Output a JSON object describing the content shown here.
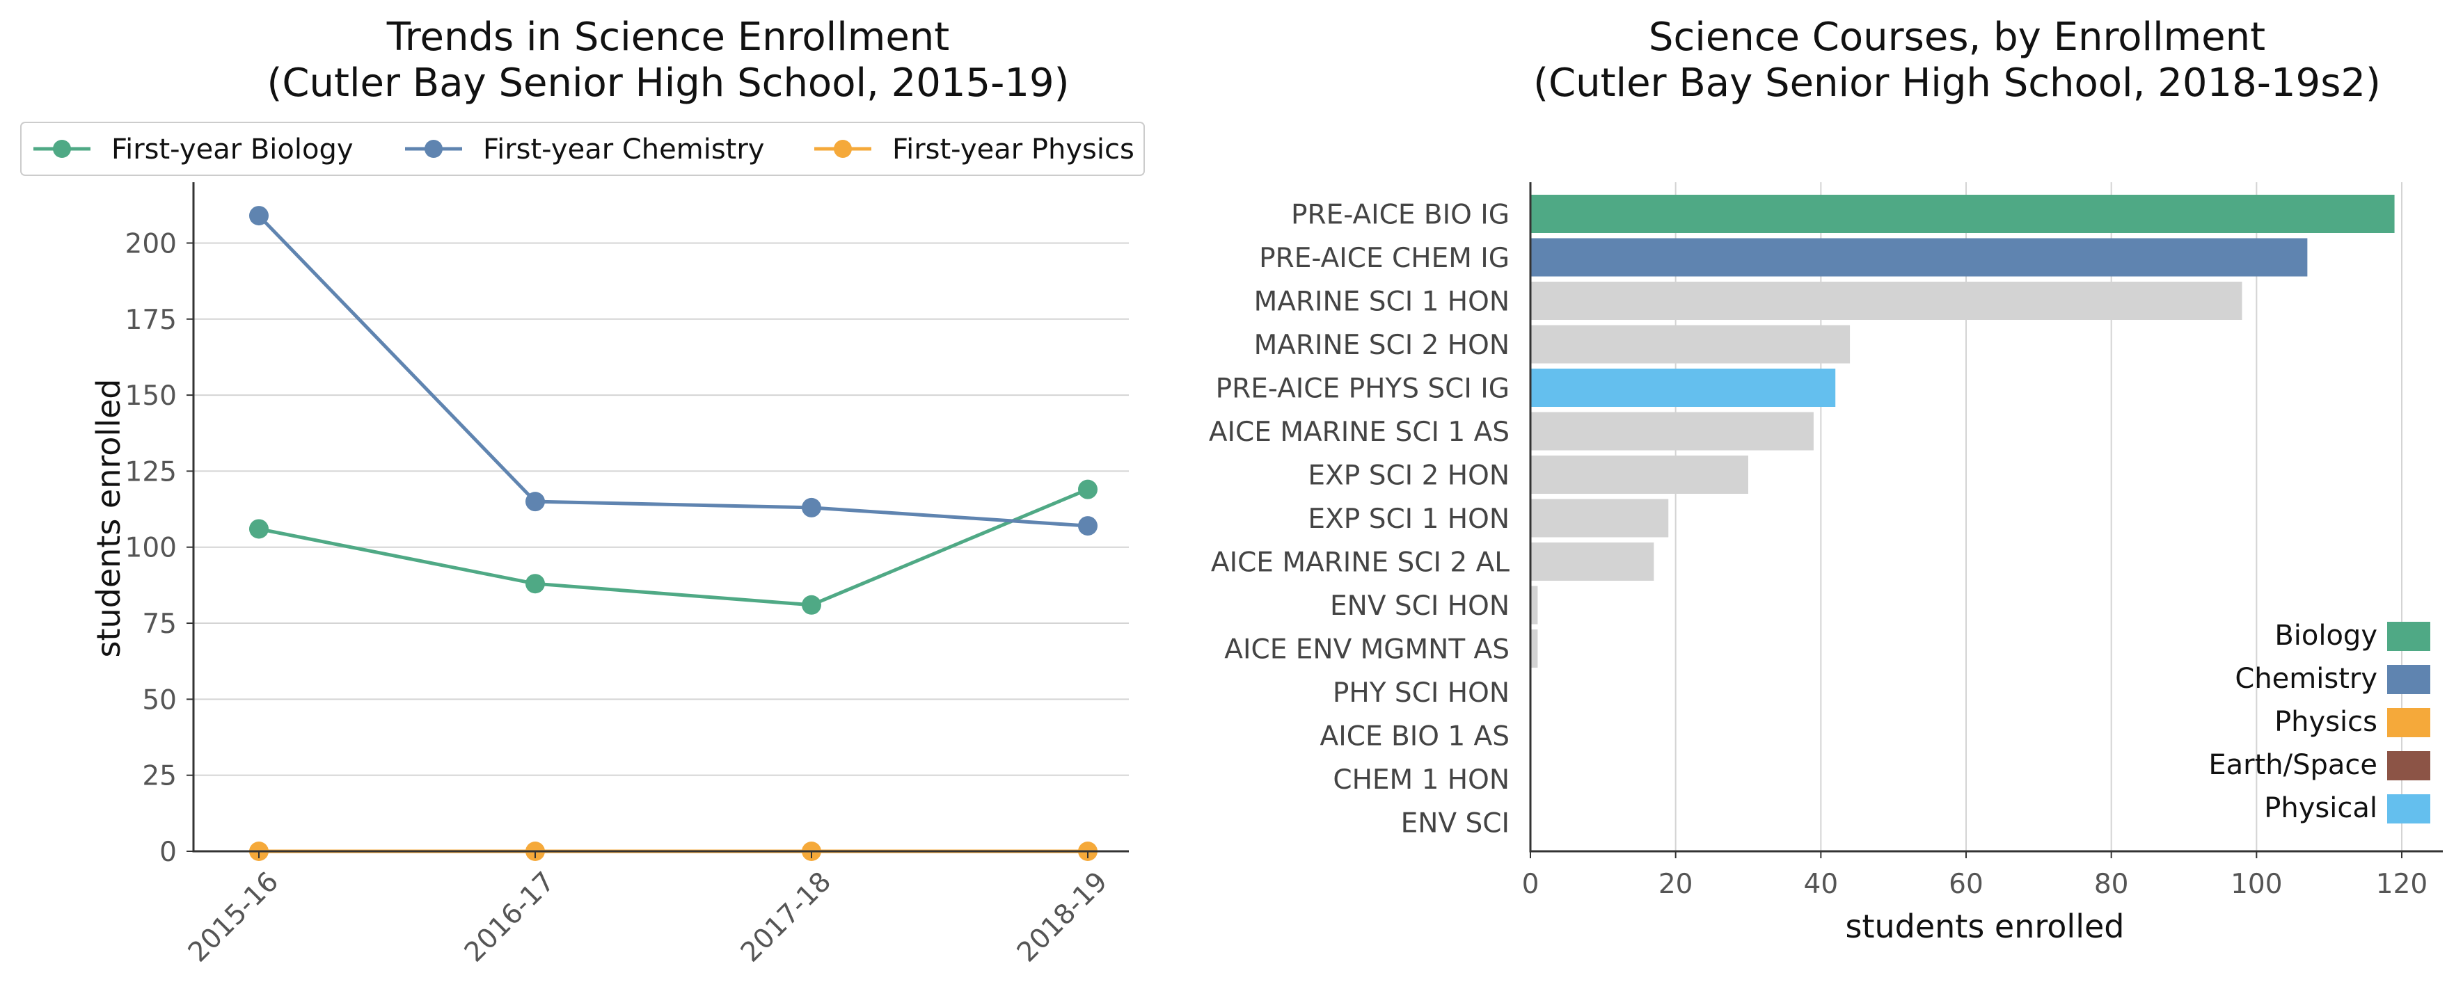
{
  "chart_data": [
    {
      "type": "line",
      "title_line1": "Trends in Science Enrollment",
      "title_line2": "(Cutler Bay Senior High School, 2015-19)",
      "xlabel": "",
      "ylabel": "students enrolled",
      "categories": [
        "2015-16",
        "2016-17",
        "2017-18",
        "2018-19"
      ],
      "ylim": [
        0,
        220
      ],
      "yticks": [
        0,
        25,
        50,
        75,
        100,
        125,
        150,
        175,
        200
      ],
      "grid": "horizontal",
      "legend_position": "top",
      "series": [
        {
          "name": "First-year Biology",
          "color": "#4fa985",
          "values": [
            106,
            88,
            81,
            119
          ]
        },
        {
          "name": "First-year Chemistry",
          "color": "#5f84b0",
          "values": [
            209,
            115,
            113,
            107
          ]
        },
        {
          "name": "First-year Physics",
          "color": "#f5a93a",
          "values": [
            0,
            0,
            0,
            0
          ]
        }
      ]
    },
    {
      "type": "bar",
      "orientation": "horizontal",
      "title_line1": "Science Courses, by Enrollment",
      "title_line2": "(Cutler Bay Senior High School, 2018-19s2)",
      "xlabel": "students enrolled",
      "ylabel": "",
      "xlim": [
        0,
        125
      ],
      "xticks": [
        0,
        20,
        40,
        60,
        80,
        100,
        120
      ],
      "grid": "vertical",
      "legend_position": "bottom-right",
      "categories": [
        "PRE-AICE BIO IG",
        "PRE-AICE CHEM IG",
        "MARINE SCI 1 HON",
        "MARINE SCI 2 HON",
        "PRE-AICE PHYS SCI IG",
        "AICE MARINE SCI 1 AS",
        "EXP SCI 2 HON",
        "EXP SCI 1 HON",
        "AICE MARINE SCI 2 AL",
        "ENV SCI HON",
        "AICE ENV MGMNT AS",
        "PHY SCI HON",
        "AICE BIO 1 AS",
        "CHEM 1 HON",
        "ENV SCI"
      ],
      "values": [
        119,
        107,
        98,
        44,
        42,
        39,
        30,
        19,
        17,
        1,
        1,
        0,
        0,
        0,
        0
      ],
      "bar_colors": [
        "#4fa985",
        "#5f84b0",
        "#d3d3d3",
        "#d3d3d3",
        "#64bfee",
        "#d3d3d3",
        "#d3d3d3",
        "#d3d3d3",
        "#d3d3d3",
        "#d3d3d3",
        "#d3d3d3",
        "#d3d3d3",
        "#d3d3d3",
        "#d3d3d3",
        "#d3d3d3"
      ],
      "legend": [
        {
          "name": "Biology",
          "color": "#4fa985"
        },
        {
          "name": "Chemistry",
          "color": "#5f84b0"
        },
        {
          "name": "Physics",
          "color": "#f5a93a"
        },
        {
          "name": "Earth/Space",
          "color": "#8c5446"
        },
        {
          "name": "Physical",
          "color": "#64bfee"
        }
      ]
    }
  ]
}
